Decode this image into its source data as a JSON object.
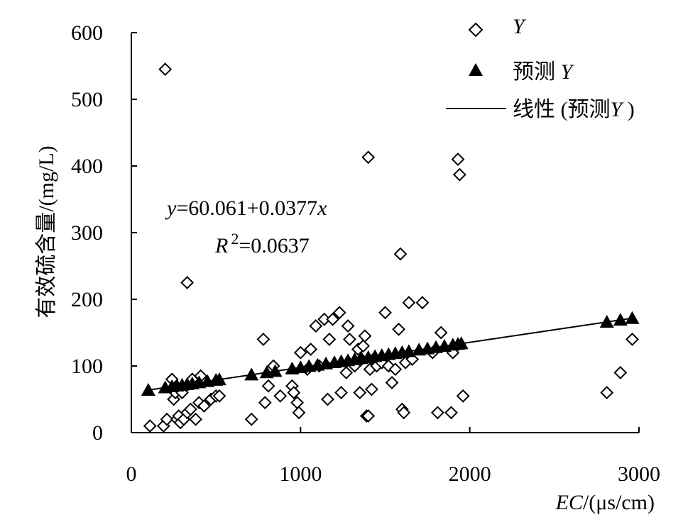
{
  "chart_data": {
    "type": "scatter",
    "xlabel_italic": "EC",
    "xlabel_rest": "/(μs/cm)",
    "ylabel": "有效硫含量/(mg/L)",
    "xlim": [
      0,
      3000
    ],
    "ylim": [
      0,
      600
    ],
    "x_ticks": [
      "0",
      "1000",
      "2000",
      "3000"
    ],
    "y_ticks": [
      "0",
      "100",
      "200",
      "300",
      "400",
      "500",
      "600"
    ],
    "grid": false,
    "legend_position": "top-right",
    "legend": {
      "observed": "Y",
      "predicted_prefix": "预测 ",
      "predicted_var": "Y",
      "trend_prefix": "线性 (预测",
      "trend_var": "Y",
      "trend_suffix": " )"
    },
    "equation": {
      "y_var": "y",
      "line1_middle": "=60.061+0.0377",
      "x_var": "x",
      "r_var": "R",
      "r_exp": "2",
      "line2_rest": "=0.0637"
    },
    "trendline": {
      "intercept": 60.061,
      "slope": 0.0377,
      "x_range": [
        100,
        2950
      ]
    },
    "series": [
      {
        "name": "Y",
        "marker": "diamond-open",
        "x": [
          200,
          330,
          1400,
          1930,
          1940,
          1590,
          110,
          190,
          210,
          240,
          250,
          260,
          270,
          280,
          290,
          300,
          310,
          330,
          350,
          360,
          380,
          400,
          410,
          430,
          470,
          500,
          520,
          710,
          780,
          790,
          810,
          840,
          880,
          950,
          960,
          980,
          990,
          1000,
          1040,
          1060,
          1090,
          1110,
          1140,
          1160,
          1170,
          1190,
          1230,
          1240,
          1270,
          1280,
          1290,
          1320,
          1340,
          1350,
          1360,
          1370,
          1380,
          1390,
          1400,
          1410,
          1420,
          1430,
          1450,
          1480,
          1500,
          1520,
          1540,
          1560,
          1580,
          1600,
          1610,
          1620,
          1640,
          1660,
          1720,
          1780,
          1810,
          1830,
          1890,
          1900,
          1960,
          2810,
          2890,
          2960
        ],
        "y": [
          545,
          225,
          413,
          410,
          387,
          268,
          10,
          10,
          20,
          80,
          50,
          60,
          20,
          25,
          15,
          60,
          20,
          30,
          35,
          80,
          20,
          45,
          85,
          40,
          50,
          55,
          55,
          20,
          140,
          45,
          70,
          100,
          55,
          70,
          60,
          45,
          30,
          120,
          95,
          125,
          160,
          100,
          170,
          50,
          140,
          170,
          180,
          60,
          90,
          160,
          140,
          100,
          125,
          60,
          110,
          130,
          145,
          25,
          25,
          95,
          65,
          110,
          100,
          105,
          180,
          100,
          75,
          95,
          155,
          35,
          30,
          105,
          195,
          110,
          195,
          120,
          30,
          150,
          30,
          120,
          55,
          60,
          90,
          140
        ]
      },
      {
        "name": "预测 Y",
        "marker": "triangle-filled",
        "x": [
          100,
          200,
          240,
          270,
          300,
          330,
          360,
          400,
          450,
          500,
          520,
          710,
          800,
          850,
          950,
          1000,
          1050,
          1100,
          1150,
          1200,
          1240,
          1280,
          1320,
          1360,
          1400,
          1440,
          1480,
          1520,
          1560,
          1600,
          1640,
          1700,
          1750,
          1800,
          1850,
          1900,
          1930,
          1950,
          2810,
          2890,
          2960
        ],
        "y": [
          63.8,
          67.6,
          69.1,
          70.2,
          71.4,
          72.5,
          73.6,
          75.1,
          77.0,
          78.9,
          79.7,
          86.8,
          90.2,
          92.1,
          95.9,
          97.8,
          99.6,
          101.5,
          103.4,
          105.3,
          106.8,
          108.3,
          109.8,
          111.3,
          112.9,
          114.4,
          115.9,
          117.4,
          118.9,
          120.4,
          121.9,
          124.2,
          126.0,
          127.9,
          129.8,
          131.7,
          132.8,
          133.6,
          166.0,
          169.0,
          171.6
        ]
      }
    ]
  }
}
